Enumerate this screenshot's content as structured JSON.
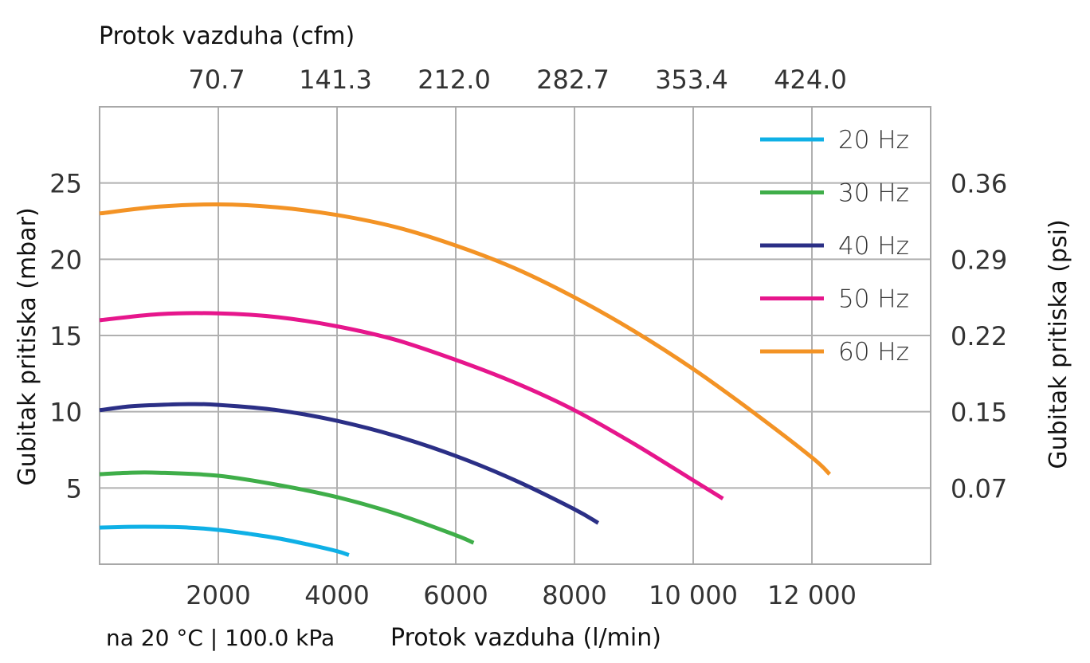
{
  "chart_data": {
    "type": "line",
    "top_axis_title": "Protok vazduha (cfm)",
    "top_ticks": [
      "70.7",
      "141.3",
      "212.0",
      "282.7",
      "353.4",
      "424.0"
    ],
    "xlabel": "Protok vazduha (l/min)",
    "footnote": "na 20 °C | 100.0 kPa",
    "ylabel": "Gubitak pritiska (mbar)",
    "y2label": "Gubitak pritiska (psi)",
    "x_ticks": [
      2000,
      4000,
      6000,
      8000,
      10000,
      12000
    ],
    "x_tick_labels": [
      "2000",
      "4000",
      "6000",
      "8000",
      "10 000",
      "12 000"
    ],
    "y_ticks": [
      5,
      10,
      15,
      20,
      25
    ],
    "y_tick_labels": [
      "5",
      "10",
      "15",
      "20",
      "25"
    ],
    "y2_ticks": [
      5,
      10,
      15,
      20,
      25
    ],
    "y2_tick_labels": [
      "0.07",
      "0.15",
      "0.22",
      "0.29",
      "0.36"
    ],
    "xlim": [
      0,
      14000
    ],
    "ylim": [
      0,
      30
    ],
    "grid": true,
    "legend_position": "top-right",
    "series": [
      {
        "name": "20 Hz",
        "color": "#0fb0e6",
        "x": [
          0,
          500,
          1000,
          1500,
          2000,
          2500,
          3000,
          3500,
          4000,
          4200
        ],
        "y": [
          2.4,
          2.45,
          2.45,
          2.4,
          2.25,
          2.0,
          1.7,
          1.3,
          0.85,
          0.6
        ]
      },
      {
        "name": "30 Hz",
        "color": "#3fae49",
        "x": [
          0,
          500,
          1000,
          2000,
          3000,
          4000,
          5000,
          6000,
          6300
        ],
        "y": [
          5.9,
          6.0,
          6.0,
          5.8,
          5.2,
          4.4,
          3.3,
          1.9,
          1.4
        ]
      },
      {
        "name": "40 Hz",
        "color": "#2b2f86",
        "x": [
          0,
          500,
          1000,
          1500,
          2000,
          3000,
          4000,
          5000,
          6000,
          7000,
          8000,
          8400
        ],
        "y": [
          10.1,
          10.35,
          10.45,
          10.5,
          10.45,
          10.1,
          9.4,
          8.4,
          7.1,
          5.5,
          3.6,
          2.7
        ]
      },
      {
        "name": "50 Hz",
        "color": "#e6168c",
        "x": [
          0,
          1000,
          2000,
          3000,
          4000,
          5000,
          6000,
          7000,
          8000,
          9000,
          10000,
          10500
        ],
        "y": [
          16.0,
          16.4,
          16.45,
          16.2,
          15.6,
          14.7,
          13.4,
          11.9,
          10.1,
          7.9,
          5.5,
          4.3
        ]
      },
      {
        "name": "60 Hz",
        "color": "#f39325",
        "x": [
          0,
          1000,
          2000,
          3000,
          4000,
          5000,
          6000,
          7000,
          8000,
          9000,
          10000,
          11000,
          12000,
          12300
        ],
        "y": [
          23.0,
          23.45,
          23.6,
          23.4,
          22.9,
          22.1,
          20.9,
          19.4,
          17.5,
          15.3,
          12.8,
          10.0,
          7.0,
          5.9
        ]
      }
    ]
  }
}
